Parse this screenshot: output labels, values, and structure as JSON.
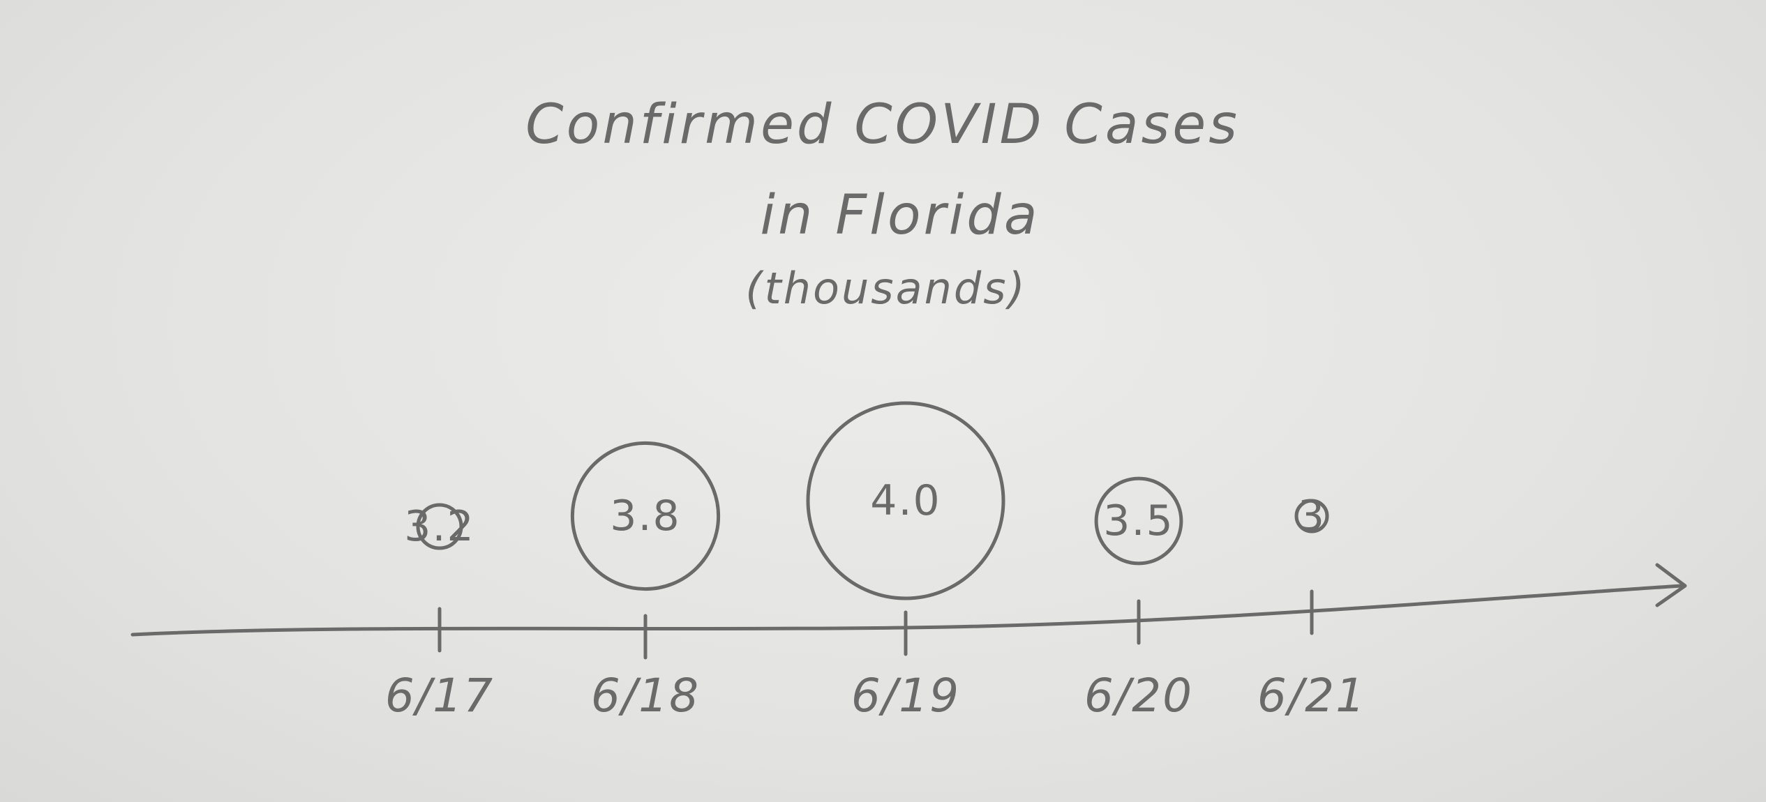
{
  "chart_data": {
    "type": "scatter",
    "encoding": "bubble",
    "title": "Confirmed COVID Cases",
    "title_line2": "in Florida",
    "subtitle": "(thousands)",
    "x": [
      "6/17",
      "6/18",
      "6/19",
      "6/20",
      "6/21"
    ],
    "values": [
      3.2,
      3.8,
      4.0,
      3.5,
      3
    ],
    "value_labels": [
      "3.2",
      "3.8",
      "4.0",
      "3.5",
      "3"
    ],
    "xlabel": "",
    "ylabel": "",
    "grid": false,
    "legend": "none",
    "axis_arrow": true
  },
  "colors": {
    "ink": "#6a6a6a",
    "paper": "#e6e6e4"
  }
}
